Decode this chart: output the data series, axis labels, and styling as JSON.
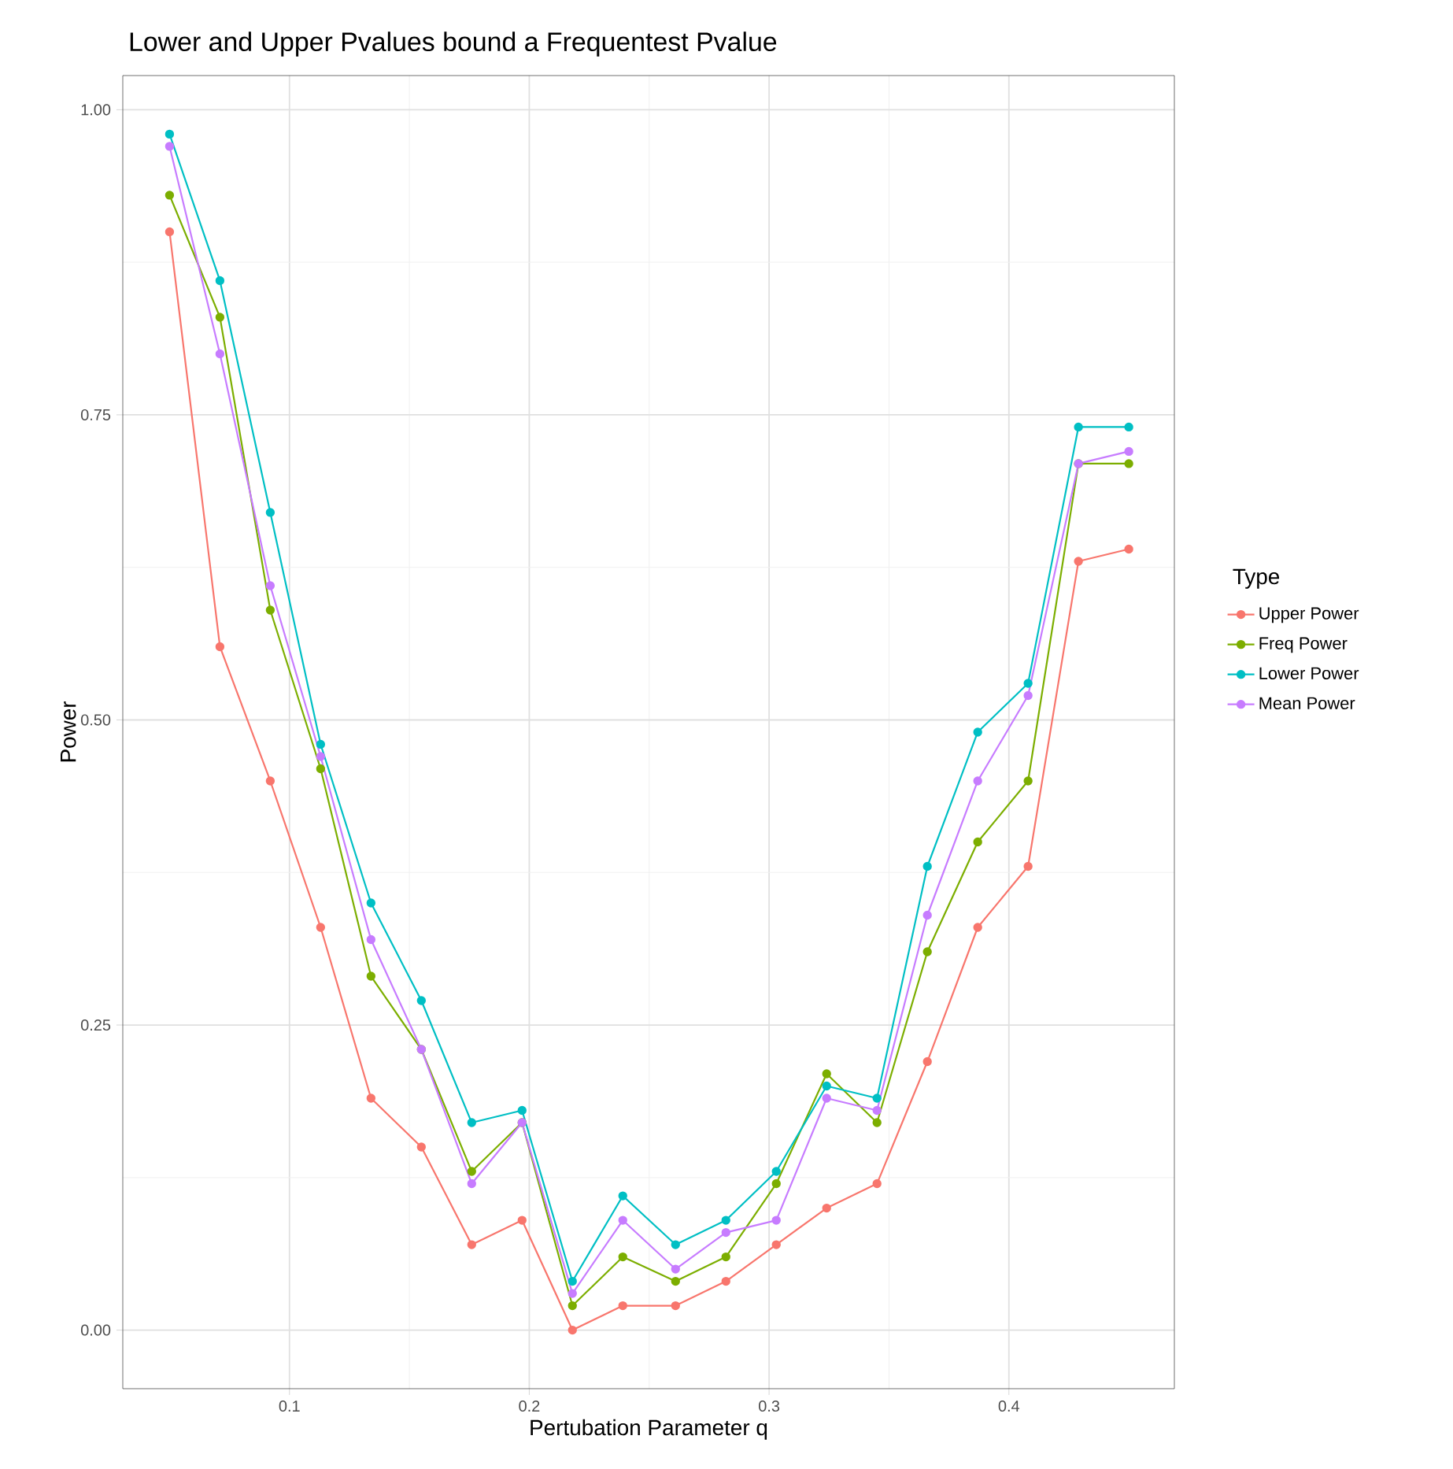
{
  "chart_data": {
    "type": "line",
    "title": "Lower and Upper Pvalues bound a Frequentest Pvalue",
    "xlabel": "Pertubation Parameter q",
    "ylabel": "Power",
    "legend_title": "Type",
    "x": [
      0.05,
      0.071,
      0.092,
      0.113,
      0.134,
      0.155,
      0.176,
      0.197,
      0.218,
      0.239,
      0.261,
      0.282,
      0.303,
      0.324,
      0.345,
      0.366,
      0.387,
      0.408,
      0.429,
      0.45
    ],
    "series": [
      {
        "name": "Upper Power",
        "color": "#f8766d",
        "values": [
          0.9,
          0.56,
          0.45,
          0.33,
          0.19,
          0.15,
          0.07,
          0.09,
          0.0,
          0.02,
          0.02,
          0.04,
          0.07,
          0.1,
          0.12,
          0.22,
          0.33,
          0.38,
          0.63,
          0.64
        ]
      },
      {
        "name": "Freq Power",
        "color": "#7cae00",
        "values": [
          0.93,
          0.83,
          0.59,
          0.46,
          0.29,
          0.23,
          0.13,
          0.17,
          0.02,
          0.06,
          0.04,
          0.06,
          0.12,
          0.21,
          0.17,
          0.31,
          0.4,
          0.45,
          0.71,
          0.71
        ]
      },
      {
        "name": "Lower Power",
        "color": "#00bfc4",
        "values": [
          0.98,
          0.86,
          0.67,
          0.48,
          0.35,
          0.27,
          0.17,
          0.18,
          0.04,
          0.11,
          0.07,
          0.09,
          0.13,
          0.2,
          0.19,
          0.38,
          0.49,
          0.53,
          0.74,
          0.74
        ]
      },
      {
        "name": "Mean Power",
        "color": "#c77cff",
        "values": [
          0.97,
          0.8,
          0.61,
          0.47,
          0.32,
          0.23,
          0.12,
          0.17,
          0.03,
          0.09,
          0.05,
          0.08,
          0.09,
          0.19,
          0.18,
          0.34,
          0.45,
          0.52,
          0.71,
          0.72
        ]
      }
    ],
    "xlim": [
      0.0305,
      0.469
    ],
    "ylim": [
      -0.048,
      1.028
    ],
    "xticks": [
      {
        "value": 0.1,
        "label": "0.1"
      },
      {
        "value": 0.2,
        "label": "0.2"
      },
      {
        "value": 0.3,
        "label": "0.3"
      },
      {
        "value": 0.4,
        "label": "0.4"
      }
    ],
    "yticks": [
      {
        "value": 0,
        "label": "0.00"
      },
      {
        "value": 0.25,
        "label": "0.25"
      },
      {
        "value": 0.5,
        "label": "0.50"
      },
      {
        "value": 0.75,
        "label": "0.75"
      },
      {
        "value": 1,
        "label": "1.00"
      }
    ],
    "grid": true,
    "legend": "right",
    "marker": "circle",
    "line_style": "solid"
  }
}
